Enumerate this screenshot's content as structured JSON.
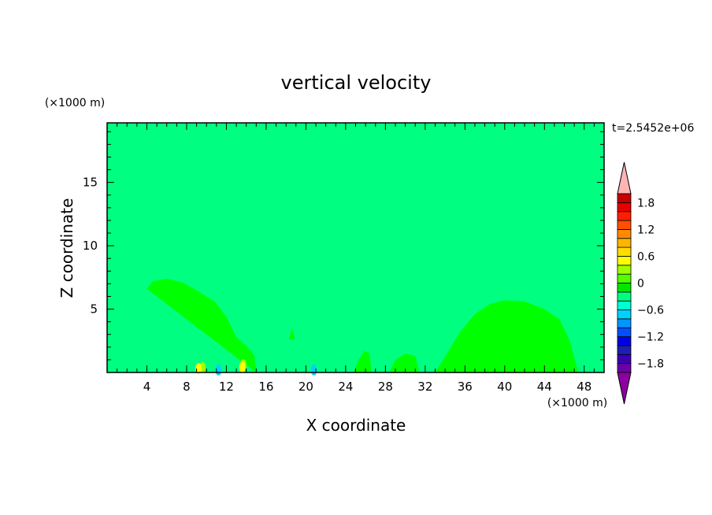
{
  "chart_data": {
    "type": "contour",
    "title": "vertical velocity",
    "xlabel": "X coordinate",
    "ylabel": "Z coordinate",
    "x_unit": "(×1000 m)",
    "y_unit": "(×1000 m)",
    "time_label": "t=2.5452e+06",
    "xlim": [
      0,
      50
    ],
    "ylim": [
      0,
      19.7
    ],
    "x_ticks": [
      "4",
      "8",
      "12",
      "16",
      "20",
      "24",
      "28",
      "32",
      "36",
      "40",
      "44",
      "48"
    ],
    "x_tick_values": [
      4,
      8,
      12,
      16,
      20,
      24,
      28,
      32,
      36,
      40,
      44,
      48
    ],
    "y_ticks": [
      "5",
      "10",
      "15"
    ],
    "y_tick_values": [
      5,
      10,
      15
    ],
    "background_level_color": "#00ff80",
    "colorbar": {
      "min": -2.0,
      "max": 2.0,
      "step": 0.2,
      "labels": [
        "1.8",
        "1.2",
        "0.6",
        "0",
        "−0.6",
        "−1.2",
        "−1.8"
      ],
      "label_values": [
        1.8,
        1.2,
        0.6,
        0,
        -0.6,
        -1.2,
        -1.8
      ],
      "colors": [
        "#6a00a8",
        "#3c00b4",
        "#1e1eb4",
        "#0000e6",
        "#0050ff",
        "#0096ff",
        "#00d2ff",
        "#00ffd2",
        "#00ff80",
        "#00e600",
        "#50ff00",
        "#a0ff00",
        "#ffff00",
        "#ffdc00",
        "#ffb400",
        "#ff8c00",
        "#ff5000",
        "#ff1e00",
        "#e60000",
        "#c80000"
      ],
      "over_color": "#ffb4b4",
      "under_color": "#8c00a0"
    },
    "regions": [
      {
        "level_color": "#00ff00",
        "points": [
          [
            4.0,
            6.6
          ],
          [
            4.6,
            7.2
          ],
          [
            6.0,
            7.4
          ],
          [
            7.6,
            7.1
          ],
          [
            9.2,
            6.4
          ],
          [
            10.8,
            5.6
          ],
          [
            12.0,
            4.4
          ],
          [
            13.0,
            2.8
          ],
          [
            14.0,
            2.1
          ],
          [
            14.8,
            1.4
          ],
          [
            15.0,
            0
          ]
        ]
      },
      {
        "level_color": "#00ff00",
        "points": [
          [
            33.0,
            0
          ],
          [
            34.2,
            1.5
          ],
          [
            35.5,
            3.2
          ],
          [
            37.0,
            4.6
          ],
          [
            38.5,
            5.4
          ],
          [
            40.0,
            5.7
          ],
          [
            42.0,
            5.6
          ],
          [
            44.0,
            5.0
          ],
          [
            45.5,
            4.2
          ],
          [
            46.5,
            2.6
          ],
          [
            47.4,
            0
          ]
        ]
      },
      {
        "level_color": "#00ff00",
        "points": [
          [
            24.8,
            0
          ],
          [
            25.3,
            1.0
          ],
          [
            25.9,
            1.7
          ],
          [
            26.4,
            1.5
          ],
          [
            26.6,
            0
          ]
        ]
      },
      {
        "level_color": "#00ff00",
        "points": [
          [
            28.4,
            0
          ],
          [
            29.0,
            1.0
          ],
          [
            30.0,
            1.5
          ],
          [
            31.0,
            1.3
          ],
          [
            31.4,
            0
          ]
        ]
      },
      {
        "level_color": "#00ff00",
        "points": [
          [
            18.3,
            2.6
          ],
          [
            18.6,
            3.5
          ],
          [
            18.9,
            2.6
          ]
        ]
      }
    ],
    "extrema": [
      {
        "x": 9.6,
        "z": 0.4,
        "level_color": "#a0ff00"
      },
      {
        "x": 13.7,
        "z": 0.6,
        "level_color": "#a0ff00"
      },
      {
        "x": 9.2,
        "z": 0.3,
        "level_color": "#ffff00"
      },
      {
        "x": 13.6,
        "z": 0.4,
        "level_color": "#ffff00"
      },
      {
        "x": 20.8,
        "z": 0.2,
        "level_color": "#00d2ff"
      },
      {
        "x": 11.2,
        "z": 0.2,
        "level_color": "#00d2ff"
      }
    ]
  }
}
